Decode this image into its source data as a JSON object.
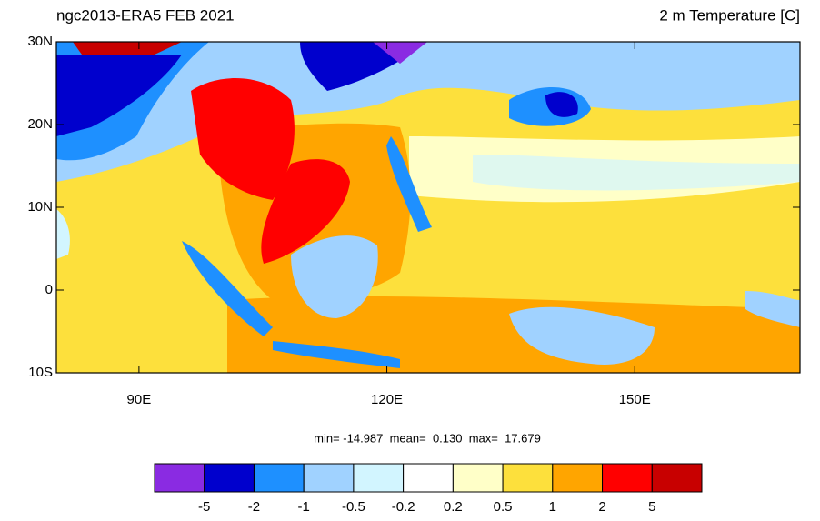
{
  "header": {
    "left_title": "ngc2013-ERA5 FEB 2021",
    "right_title": "2 m Temperature [C]"
  },
  "map": {
    "lon_range": [
      80,
      170
    ],
    "lat_range": [
      -10,
      30
    ],
    "lon_ticks": [
      {
        "value": 90,
        "label": "90E"
      },
      {
        "value": 120,
        "label": "120E"
      },
      {
        "value": 150,
        "label": "150E"
      }
    ],
    "lat_ticks": [
      {
        "value": 30,
        "label": "30N"
      },
      {
        "value": 20,
        "label": "20N"
      },
      {
        "value": 10,
        "label": "10N"
      },
      {
        "value": 0,
        "label": "0"
      },
      {
        "value": -10,
        "label": "10S"
      }
    ]
  },
  "stats": "min= -14.987  mean=  0.130  max=  17.679",
  "colorbar": {
    "labels": [
      "-5",
      "-2",
      "-1",
      "-0.5",
      "-0.2",
      "0.2",
      "0.5",
      "1",
      "2",
      "5"
    ],
    "colors": [
      "#8a2be2",
      "#0000cd",
      "#1e90ff",
      "#a0d2ff",
      "#d2f5ff",
      "#ffffff",
      "#ffffc8",
      "#fde03c",
      "#ffa500",
      "#ff0000",
      "#c80000"
    ]
  }
}
